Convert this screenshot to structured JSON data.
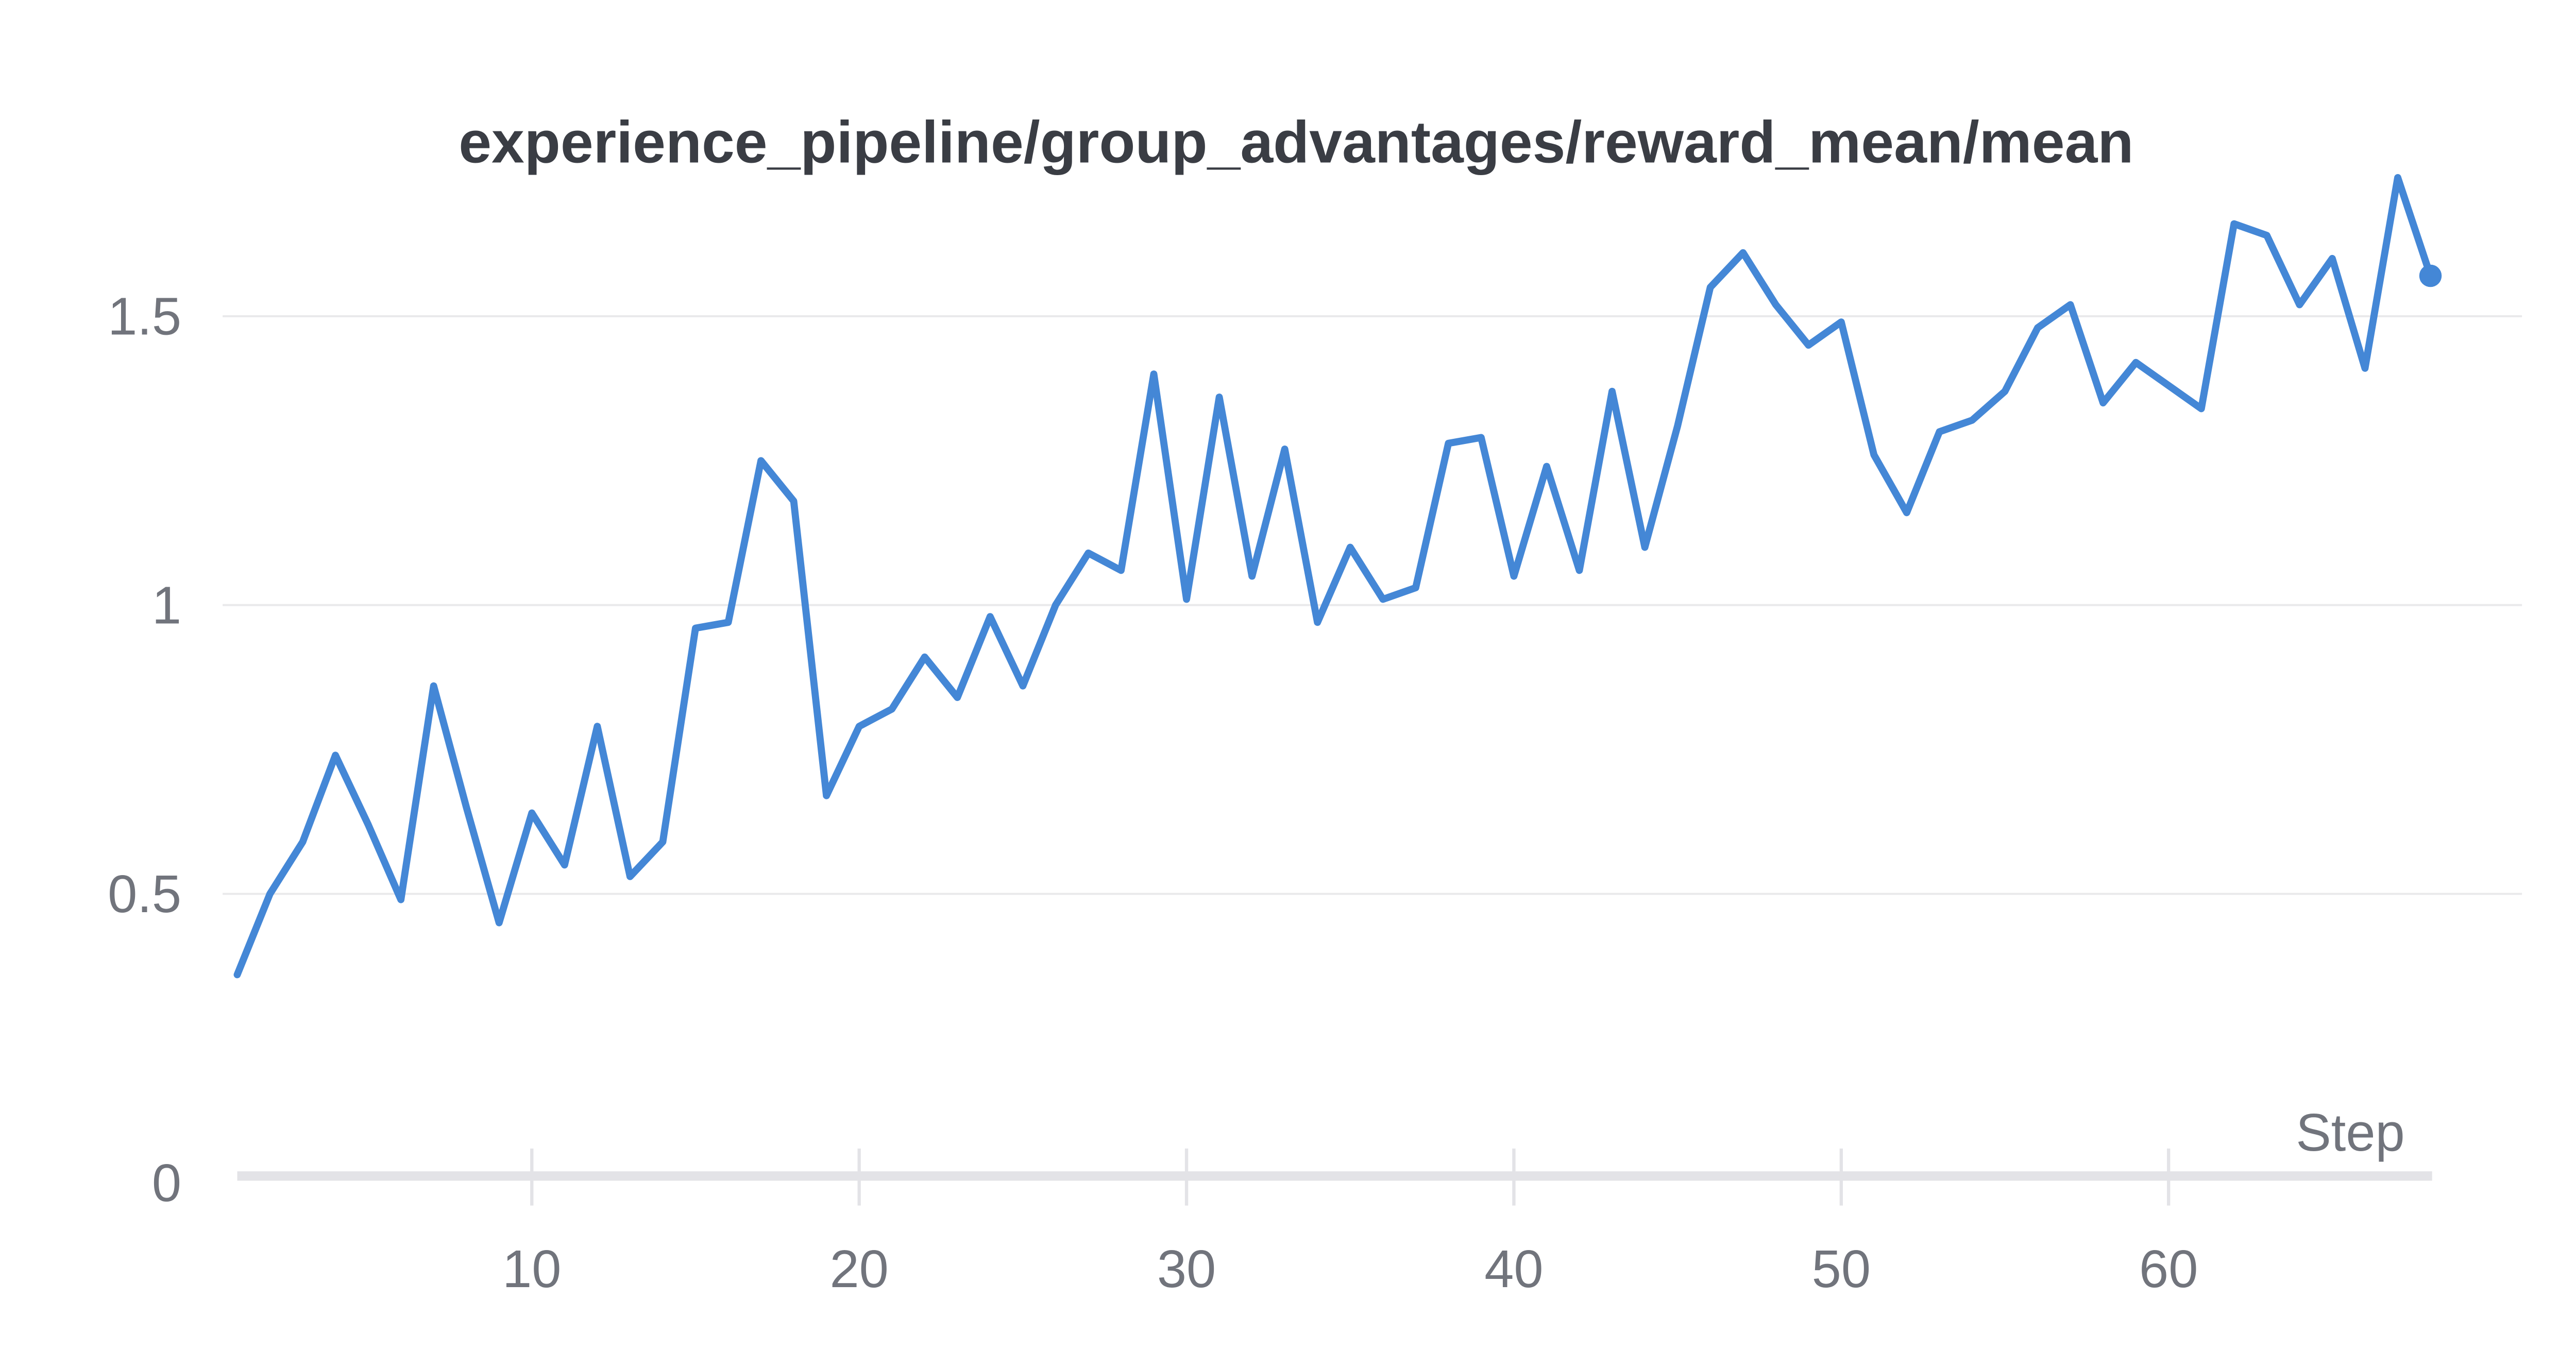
{
  "chart_data": {
    "type": "line",
    "title": "experience_pipeline/group_advantages/reward_mean/mean",
    "xlabel": "Step",
    "ylabel": "",
    "grid": "horizontal-only",
    "legend_position": "none",
    "xlim": [
      0.5,
      70.8
    ],
    "ylim": [
      0,
      1.86
    ],
    "xticks": [
      10,
      20,
      30,
      40,
      50,
      60
    ],
    "yticks": [
      0,
      0.5,
      1,
      1.5
    ],
    "ytick_labels": [
      "0",
      "0.5",
      "1",
      "1.5"
    ],
    "end_point_marker": "dot",
    "series": [
      {
        "name": "reward_mean/mean",
        "x": [
          1,
          2,
          3,
          4,
          5,
          6,
          7,
          8,
          9,
          10,
          11,
          12,
          13,
          14,
          15,
          16,
          17,
          18,
          19,
          20,
          21,
          22,
          23,
          24,
          25,
          26,
          27,
          28,
          29,
          30,
          31,
          32,
          33,
          34,
          35,
          36,
          37,
          38,
          39,
          40,
          41,
          42,
          43,
          44,
          45,
          46,
          47,
          48,
          49,
          50,
          51,
          52,
          53,
          54,
          55,
          56,
          57,
          58,
          59,
          60,
          61,
          62,
          63,
          64,
          65,
          66,
          67,
          68
        ],
        "values": [
          0.36,
          0.5,
          0.59,
          0.74,
          0.62,
          0.49,
          0.86,
          0.65,
          0.45,
          0.64,
          0.55,
          0.79,
          0.53,
          0.59,
          0.96,
          0.97,
          1.25,
          1.18,
          0.67,
          0.79,
          0.82,
          0.91,
          0.84,
          0.98,
          0.86,
          1.0,
          1.09,
          1.06,
          1.4,
          1.01,
          1.36,
          1.05,
          1.27,
          0.97,
          1.1,
          1.01,
          1.03,
          1.28,
          1.29,
          1.05,
          1.24,
          1.06,
          1.37,
          1.1,
          1.31,
          1.55,
          1.61,
          1.52,
          1.45,
          1.49,
          1.26,
          1.16,
          1.3,
          1.32,
          1.37,
          1.48,
          1.52,
          1.35,
          1.42,
          1.38,
          1.34,
          1.66,
          1.64,
          1.52,
          1.6,
          1.41,
          1.74,
          1.57
        ]
      }
    ],
    "colors": {
      "line": "#4487d6",
      "end_dot": "#4487d6",
      "title_text": "#3a3d44",
      "tick_text": "#71747c",
      "gridline": "#e9e9eb",
      "axis_line": "#e3e3e7",
      "background": "#ffffff"
    }
  }
}
